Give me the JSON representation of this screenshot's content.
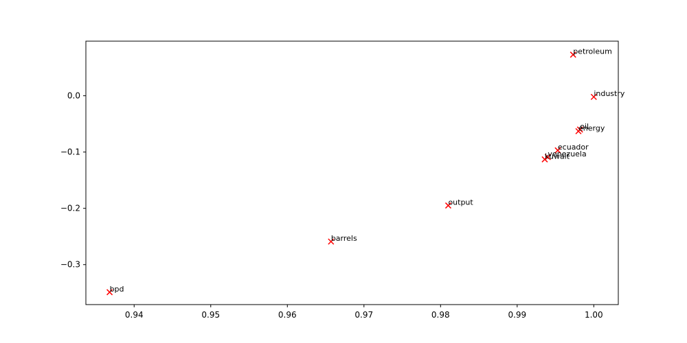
{
  "chart_data": {
    "type": "scatter",
    "title": "",
    "xlabel": "",
    "ylabel": "",
    "xlim": [
      0.9337,
      1.0032
    ],
    "ylim": [
      -0.371,
      0.097
    ],
    "xticks": [
      0.94,
      0.95,
      0.96,
      0.97,
      0.98,
      0.99,
      1.0
    ],
    "xtick_labels": [
      "0.94",
      "0.95",
      "0.96",
      "0.97",
      "0.98",
      "0.99",
      "1.00"
    ],
    "yticks": [
      0.0,
      -0.1,
      -0.2,
      -0.3
    ],
    "ytick_labels": [
      "0.0",
      "−0.1",
      "−0.2",
      "−0.3"
    ],
    "grid": false,
    "marker": "x",
    "marker_color": "#ff0000",
    "points": [
      {
        "label": "petroleum",
        "x": 0.9973,
        "y": 0.073
      },
      {
        "label": "industry",
        "x": 1.0,
        "y": -0.002
      },
      {
        "label": "oil",
        "x": 0.9982,
        "y": -0.06
      },
      {
        "label": "energy",
        "x": 0.998,
        "y": -0.063
      },
      {
        "label": "ecuador",
        "x": 0.9953,
        "y": -0.097
      },
      {
        "label": "venezuela",
        "x": 0.994,
        "y": -0.109
      },
      {
        "label": "kuwait",
        "x": 0.9936,
        "y": -0.113
      },
      {
        "label": "output",
        "x": 0.981,
        "y": -0.195
      },
      {
        "label": "barrels",
        "x": 0.9657,
        "y": -0.259
      },
      {
        "label": "bpd",
        "x": 0.9368,
        "y": -0.349
      }
    ]
  }
}
